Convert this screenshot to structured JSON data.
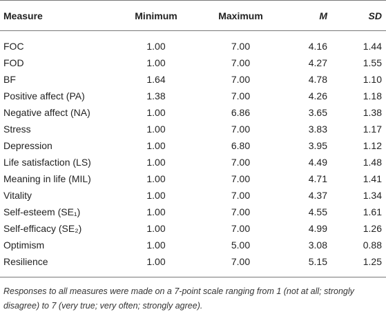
{
  "table": {
    "header": [
      "Measure",
      "Minimum",
      "Maximum",
      "M",
      "SD"
    ],
    "rows": [
      [
        "FOC",
        "1.00",
        "7.00",
        "4.16",
        "1.44"
      ],
      [
        "FOD",
        "1.00",
        "7.00",
        "4.27",
        "1.55"
      ],
      [
        "BF",
        "1.64",
        "7.00",
        "4.78",
        "1.10"
      ],
      [
        "Positive affect (PA)",
        "1.38",
        "7.00",
        "4.26",
        "1.18"
      ],
      [
        "Negative affect (NA)",
        "1.00",
        "6.86",
        "3.65",
        "1.38"
      ],
      [
        "Stress",
        "1.00",
        "7.00",
        "3.83",
        "1.17"
      ],
      [
        "Depression",
        "1.00",
        "6.80",
        "3.95",
        "1.12"
      ],
      [
        "Life satisfaction (LS)",
        "1.00",
        "7.00",
        "4.49",
        "1.48"
      ],
      [
        "Meaning in life (MIL)",
        "1.00",
        "7.00",
        "4.71",
        "1.41"
      ],
      [
        "Vitality",
        "1.00",
        "7.00",
        "4.37",
        "1.34"
      ],
      [
        "Self-esteem (SE₁)",
        "1.00",
        "7.00",
        "4.55",
        "1.61"
      ],
      [
        "Self-efficacy (SE₂)",
        "1.00",
        "7.00",
        "4.99",
        "1.26"
      ],
      [
        "Optimism",
        "1.00",
        "5.00",
        "3.08",
        "0.88"
      ],
      [
        "Resilience",
        "1.00",
        "7.00",
        "5.15",
        "1.25"
      ]
    ],
    "note": "Responses to all measures were made on a 7-point scale ranging from 1 (not at all; strongly disagree) to 7 (very true; very often; strongly agree)."
  }
}
